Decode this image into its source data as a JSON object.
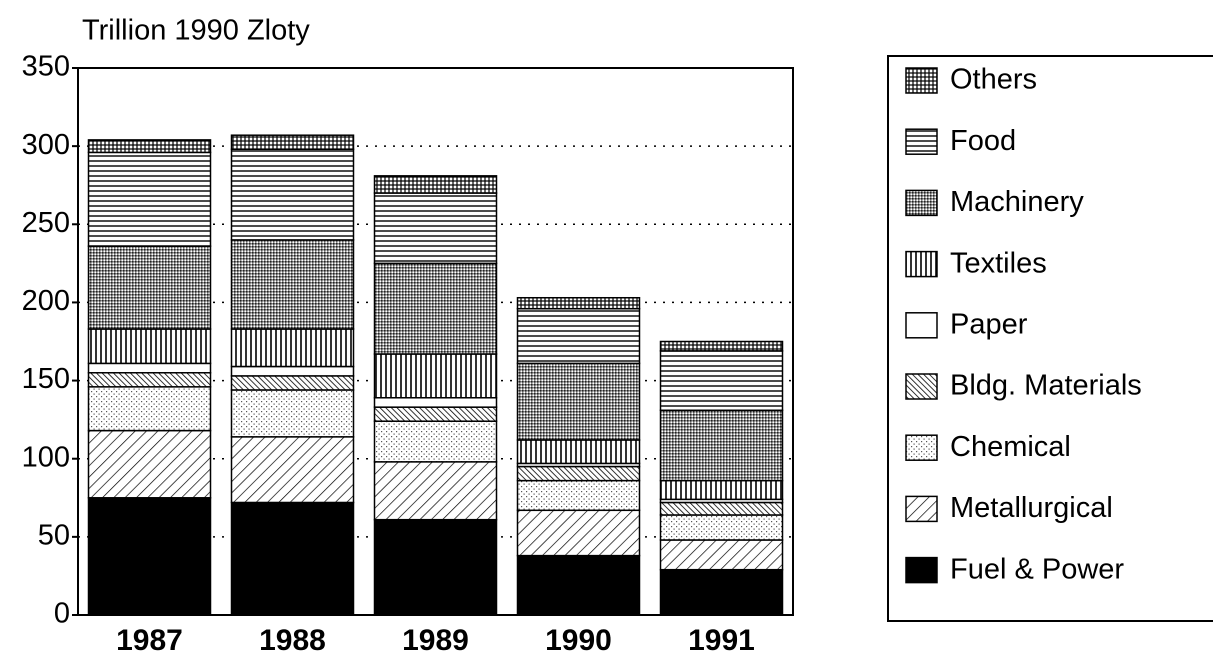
{
  "chart_data": {
    "type": "stacked_bar",
    "ylabel": "Trillion 1990 Zloty",
    "categories": [
      "1987",
      "1988",
      "1989",
      "1990",
      "1991"
    ],
    "ylim": [
      0,
      350
    ],
    "yticks": [
      0,
      50,
      100,
      150,
      200,
      250,
      300,
      350
    ],
    "grid": true,
    "legend": "right",
    "series": [
      {
        "name": "Fuel & Power",
        "pattern": "solid",
        "values": [
          75,
          72,
          61,
          38,
          29
        ]
      },
      {
        "name": "Metallurgical",
        "pattern": "diagonal",
        "values": [
          43,
          42,
          37,
          29,
          19
        ]
      },
      {
        "name": "Chemical",
        "pattern": "dots",
        "values": [
          28,
          30,
          26,
          19,
          16
        ]
      },
      {
        "name": "Bldg. Materials",
        "pattern": "dense-diagonal",
        "values": [
          9,
          9,
          9,
          9,
          8
        ]
      },
      {
        "name": "Paper",
        "pattern": "white",
        "values": [
          6,
          6,
          6,
          2,
          2
        ]
      },
      {
        "name": "Textiles",
        "pattern": "vertical",
        "values": [
          22,
          24,
          28,
          15,
          12
        ]
      },
      {
        "name": "Machinery",
        "pattern": "dense-dots",
        "values": [
          53,
          57,
          58,
          49,
          45
        ]
      },
      {
        "name": "Food",
        "pattern": "horizontal",
        "values": [
          60,
          58,
          45,
          35,
          38
        ]
      },
      {
        "name": "Others",
        "pattern": "grid",
        "values": [
          8,
          9,
          11,
          7,
          6
        ]
      }
    ]
  }
}
